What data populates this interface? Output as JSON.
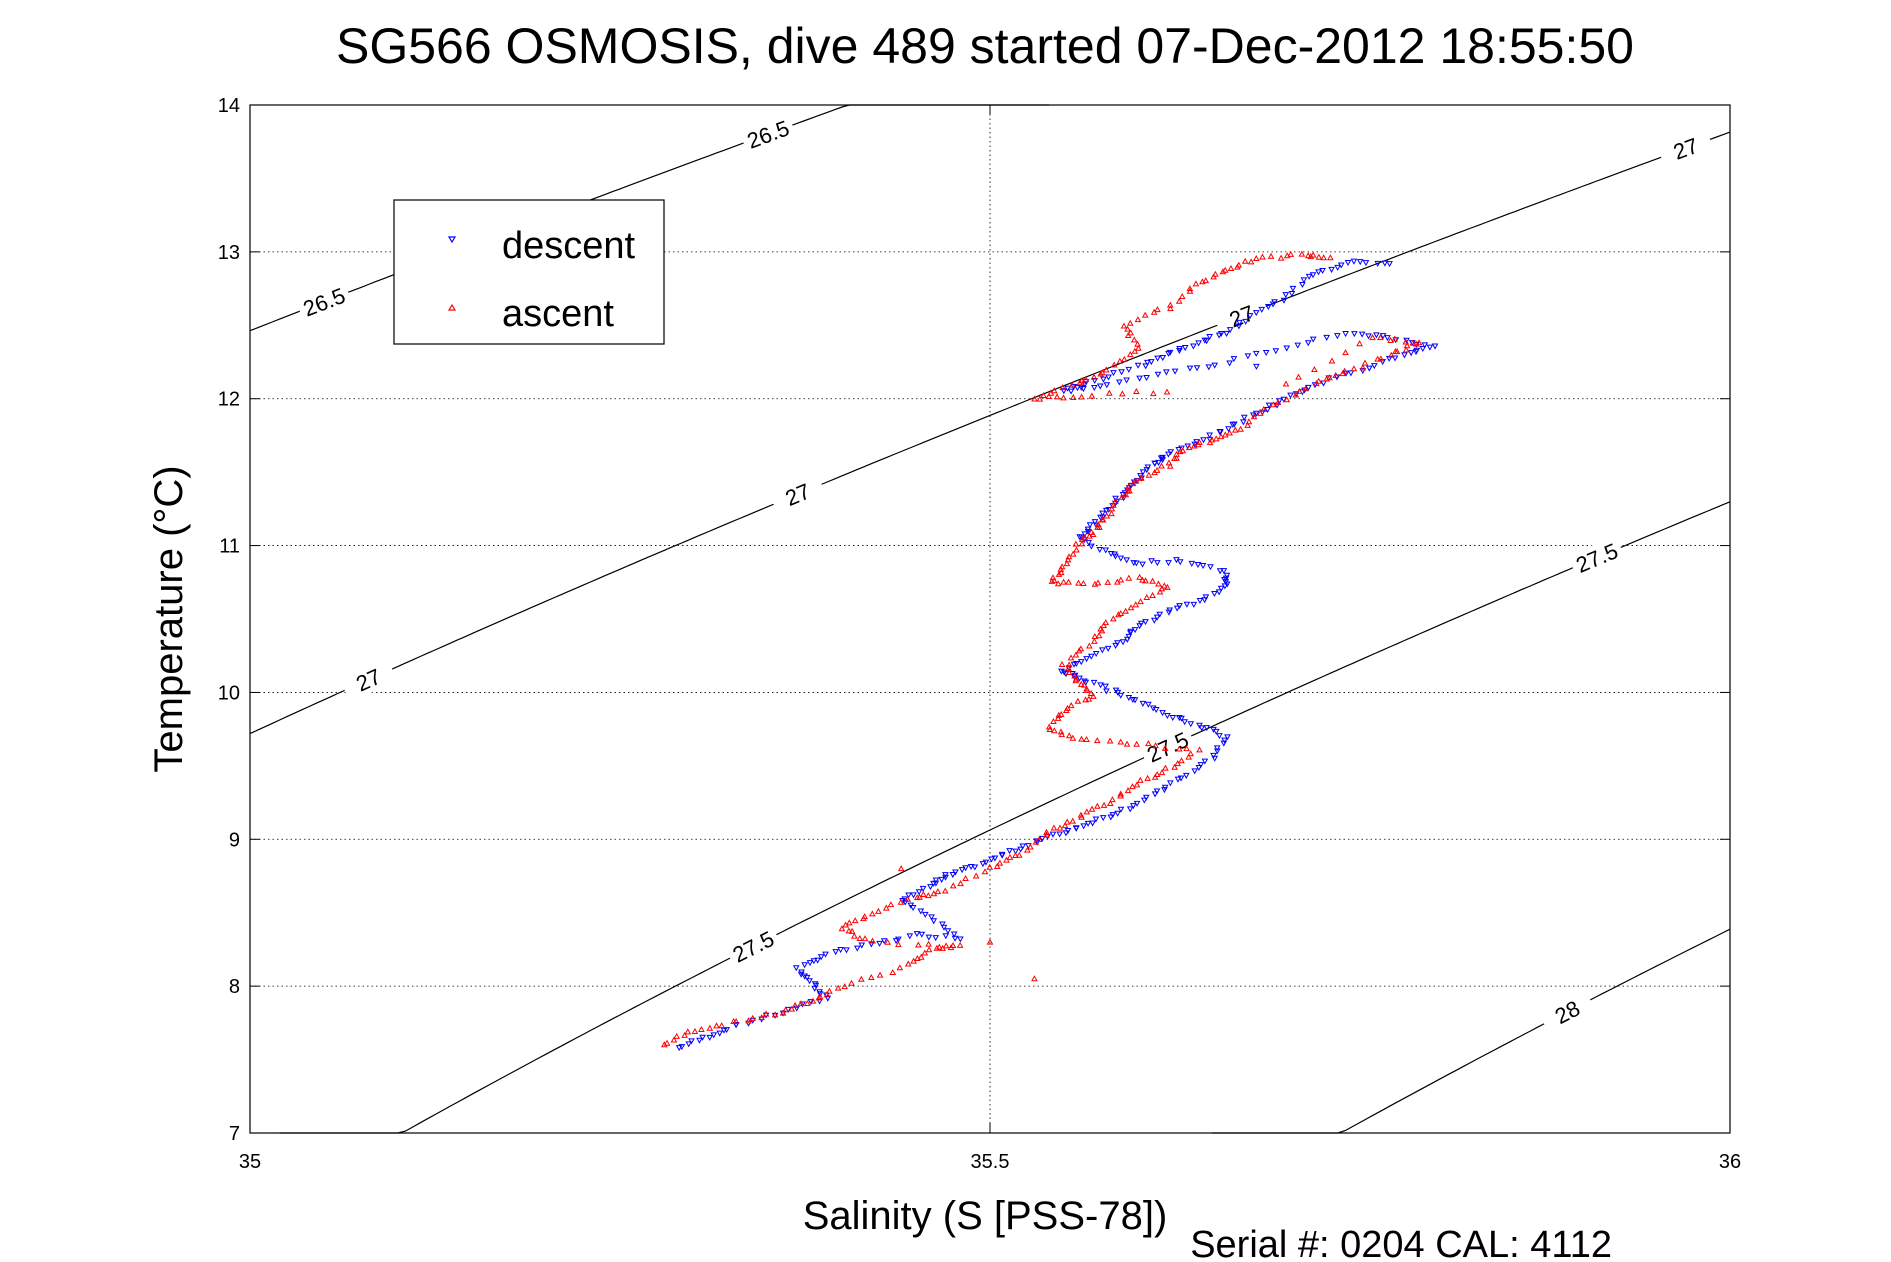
{
  "chart_data": {
    "type": "scatter",
    "title": "SG566 OSMOSIS, dive 489 started 07-Dec-2012 18:55:50",
    "xlabel": "Salinity (S [PSS-78])",
    "ylabel": "Temperature (°C)",
    "xlim": [
      35,
      36
    ],
    "ylim": [
      7,
      14
    ],
    "xticks": [
      35,
      35.5,
      36
    ],
    "xtick_labels": [
      "35",
      "35.5",
      "36"
    ],
    "yticks": [
      7,
      8,
      9,
      10,
      11,
      12,
      13,
      14
    ],
    "ytick_labels": [
      "7",
      "8",
      "9",
      "10",
      "11",
      "12",
      "13",
      "14"
    ],
    "grid": true,
    "legend_position": "top-left",
    "colors": {
      "descent": "#0000ff",
      "ascent": "#ff0000",
      "contour": "#000000"
    },
    "series": [
      {
        "name": "descent",
        "marker": "triangle-down",
        "color": "#0000ff",
        "points": [
          [
            35.29,
            7.58
          ],
          [
            35.31,
            7.66
          ],
          [
            35.33,
            7.74
          ],
          [
            35.36,
            7.82
          ],
          [
            35.39,
            7.92
          ],
          [
            35.38,
            8.02
          ],
          [
            35.37,
            8.12
          ],
          [
            35.39,
            8.22
          ],
          [
            35.42,
            8.28
          ],
          [
            35.45,
            8.35
          ],
          [
            35.48,
            8.33
          ],
          [
            35.46,
            8.48
          ],
          [
            35.44,
            8.58
          ],
          [
            35.46,
            8.68
          ],
          [
            35.47,
            8.75
          ],
          [
            35.49,
            8.82
          ],
          [
            35.51,
            8.9
          ],
          [
            35.53,
            8.98
          ],
          [
            35.55,
            9.05
          ],
          [
            35.57,
            9.12
          ],
          [
            35.59,
            9.2
          ],
          [
            35.61,
            9.3
          ],
          [
            35.63,
            9.42
          ],
          [
            35.65,
            9.55
          ],
          [
            35.66,
            9.7
          ],
          [
            35.64,
            9.78
          ],
          [
            35.62,
            9.85
          ],
          [
            35.6,
            9.95
          ],
          [
            35.58,
            10.02
          ],
          [
            35.56,
            10.1
          ],
          [
            35.55,
            10.15
          ],
          [
            35.57,
            10.25
          ],
          [
            35.59,
            10.35
          ],
          [
            35.6,
            10.45
          ],
          [
            35.62,
            10.55
          ],
          [
            35.64,
            10.62
          ],
          [
            35.66,
            10.72
          ],
          [
            35.66,
            10.82
          ],
          [
            35.63,
            10.9
          ],
          [
            35.6,
            10.88
          ],
          [
            35.58,
            10.95
          ],
          [
            35.56,
            11.05
          ],
          [
            35.57,
            11.15
          ],
          [
            35.58,
            11.25
          ],
          [
            35.59,
            11.35
          ],
          [
            35.6,
            11.45
          ],
          [
            35.61,
            11.55
          ],
          [
            35.62,
            11.62
          ],
          [
            35.64,
            11.7
          ],
          [
            35.66,
            11.8
          ],
          [
            35.68,
            11.9
          ],
          [
            35.7,
            12.0
          ],
          [
            35.72,
            12.1
          ],
          [
            35.75,
            12.2
          ],
          [
            35.78,
            12.3
          ],
          [
            35.8,
            12.35
          ],
          [
            35.77,
            12.42
          ],
          [
            35.74,
            12.45
          ],
          [
            35.7,
            12.35
          ],
          [
            35.66,
            12.25
          ],
          [
            35.62,
            12.18
          ],
          [
            35.58,
            12.1
          ],
          [
            35.55,
            12.05
          ],
          [
            35.57,
            12.12
          ],
          [
            35.6,
            12.22
          ],
          [
            35.62,
            12.3
          ],
          [
            35.64,
            12.38
          ],
          [
            35.66,
            12.45
          ],
          [
            35.68,
            12.58
          ],
          [
            35.7,
            12.7
          ],
          [
            35.72,
            12.85
          ],
          [
            35.74,
            12.93
          ],
          [
            35.77,
            12.92
          ],
          [
            35.68,
            12.22
          ]
        ]
      },
      {
        "name": "ascent",
        "marker": "triangle-up",
        "color": "#ff0000",
        "points": [
          [
            35.28,
            7.6
          ],
          [
            35.3,
            7.7
          ],
          [
            35.33,
            7.76
          ],
          [
            35.36,
            7.82
          ],
          [
            35.38,
            7.9
          ],
          [
            35.4,
            8.0
          ],
          [
            35.44,
            8.12
          ],
          [
            35.46,
            8.25
          ],
          [
            35.48,
            8.27
          ],
          [
            35.42,
            8.3
          ],
          [
            35.4,
            8.4
          ],
          [
            35.42,
            8.5
          ],
          [
            35.45,
            8.6
          ],
          [
            35.47,
            8.65
          ],
          [
            35.5,
            8.8
          ],
          [
            35.52,
            8.9
          ],
          [
            35.54,
            9.05
          ],
          [
            35.56,
            9.15
          ],
          [
            35.58,
            9.25
          ],
          [
            35.6,
            9.38
          ],
          [
            35.62,
            9.48
          ],
          [
            35.64,
            9.6
          ],
          [
            35.6,
            9.65
          ],
          [
            35.56,
            9.68
          ],
          [
            35.54,
            9.75
          ],
          [
            35.55,
            9.88
          ],
          [
            35.57,
            9.98
          ],
          [
            35.56,
            10.08
          ],
          [
            35.55,
            10.2
          ],
          [
            35.57,
            10.35
          ],
          [
            35.58,
            10.48
          ],
          [
            35.6,
            10.6
          ],
          [
            35.62,
            10.72
          ],
          [
            35.6,
            10.78
          ],
          [
            35.57,
            10.74
          ],
          [
            35.54,
            10.75
          ],
          [
            35.55,
            10.85
          ],
          [
            35.56,
            11.0
          ],
          [
            35.57,
            11.1
          ],
          [
            35.58,
            11.2
          ],
          [
            35.59,
            11.35
          ],
          [
            35.6,
            11.45
          ],
          [
            35.62,
            11.55
          ],
          [
            35.63,
            11.65
          ],
          [
            35.65,
            11.72
          ],
          [
            35.67,
            11.8
          ],
          [
            35.69,
            11.95
          ],
          [
            35.72,
            12.1
          ],
          [
            35.74,
            12.18
          ],
          [
            35.77,
            12.3
          ],
          [
            35.79,
            12.38
          ],
          [
            35.76,
            12.42
          ],
          [
            35.7,
            12.1
          ],
          [
            35.62,
            12.05
          ],
          [
            35.56,
            12.02
          ],
          [
            35.53,
            12.0
          ],
          [
            35.56,
            12.1
          ],
          [
            35.58,
            12.2
          ],
          [
            35.6,
            12.35
          ],
          [
            35.59,
            12.5
          ],
          [
            35.62,
            12.62
          ],
          [
            35.64,
            12.78
          ],
          [
            35.66,
            12.88
          ],
          [
            35.68,
            12.95
          ],
          [
            35.71,
            12.98
          ],
          [
            35.73,
            12.96
          ],
          [
            35.5,
            8.3
          ],
          [
            35.44,
            8.8
          ],
          [
            35.53,
            8.05
          ]
        ]
      }
    ],
    "contours": [
      {
        "label": "26.5",
        "levels": [
          26.5
        ]
      },
      {
        "label": "27",
        "levels": [
          27
        ]
      },
      {
        "label": "27.5",
        "levels": [
          27.5
        ]
      },
      {
        "label": "28",
        "levels": [
          28
        ]
      }
    ],
    "footer": "Serial #: 0204  CAL: 4112"
  }
}
